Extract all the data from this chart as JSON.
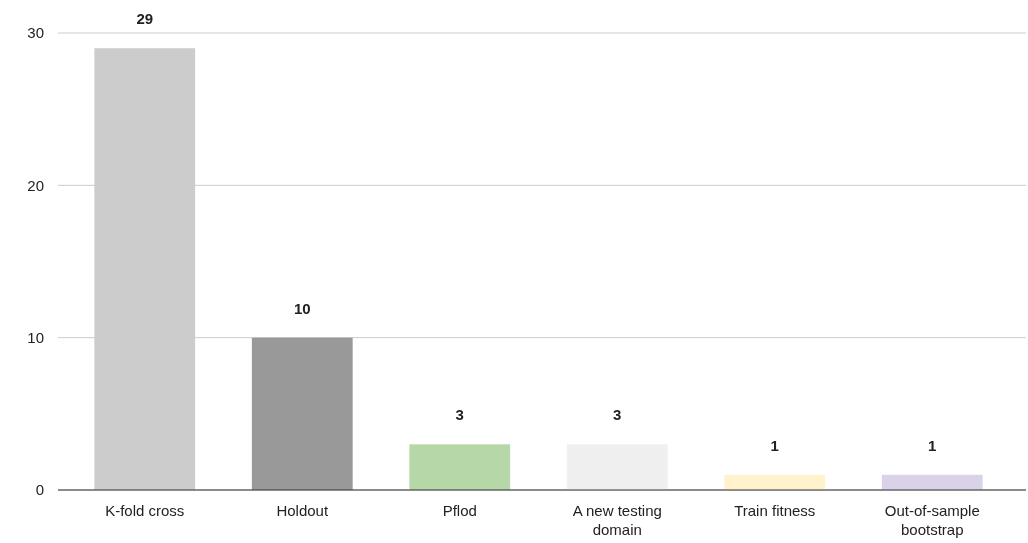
{
  "chart_data": {
    "type": "bar",
    "categories": [
      "K-fold cross",
      "Holdout",
      "Pflod",
      "A new testing domain",
      "Train fitness",
      "Out-of-sample bootstrap"
    ],
    "values": [
      29,
      10,
      3,
      3,
      1,
      1
    ],
    "colors": [
      "#cccccc",
      "#999999",
      "#b6d7a8",
      "#efefef",
      "#fff2cc",
      "#d9d2e9"
    ],
    "ylim": [
      0,
      30
    ],
    "yticks": [
      0,
      10,
      20,
      30
    ],
    "grid": "y",
    "data_labels": true
  }
}
